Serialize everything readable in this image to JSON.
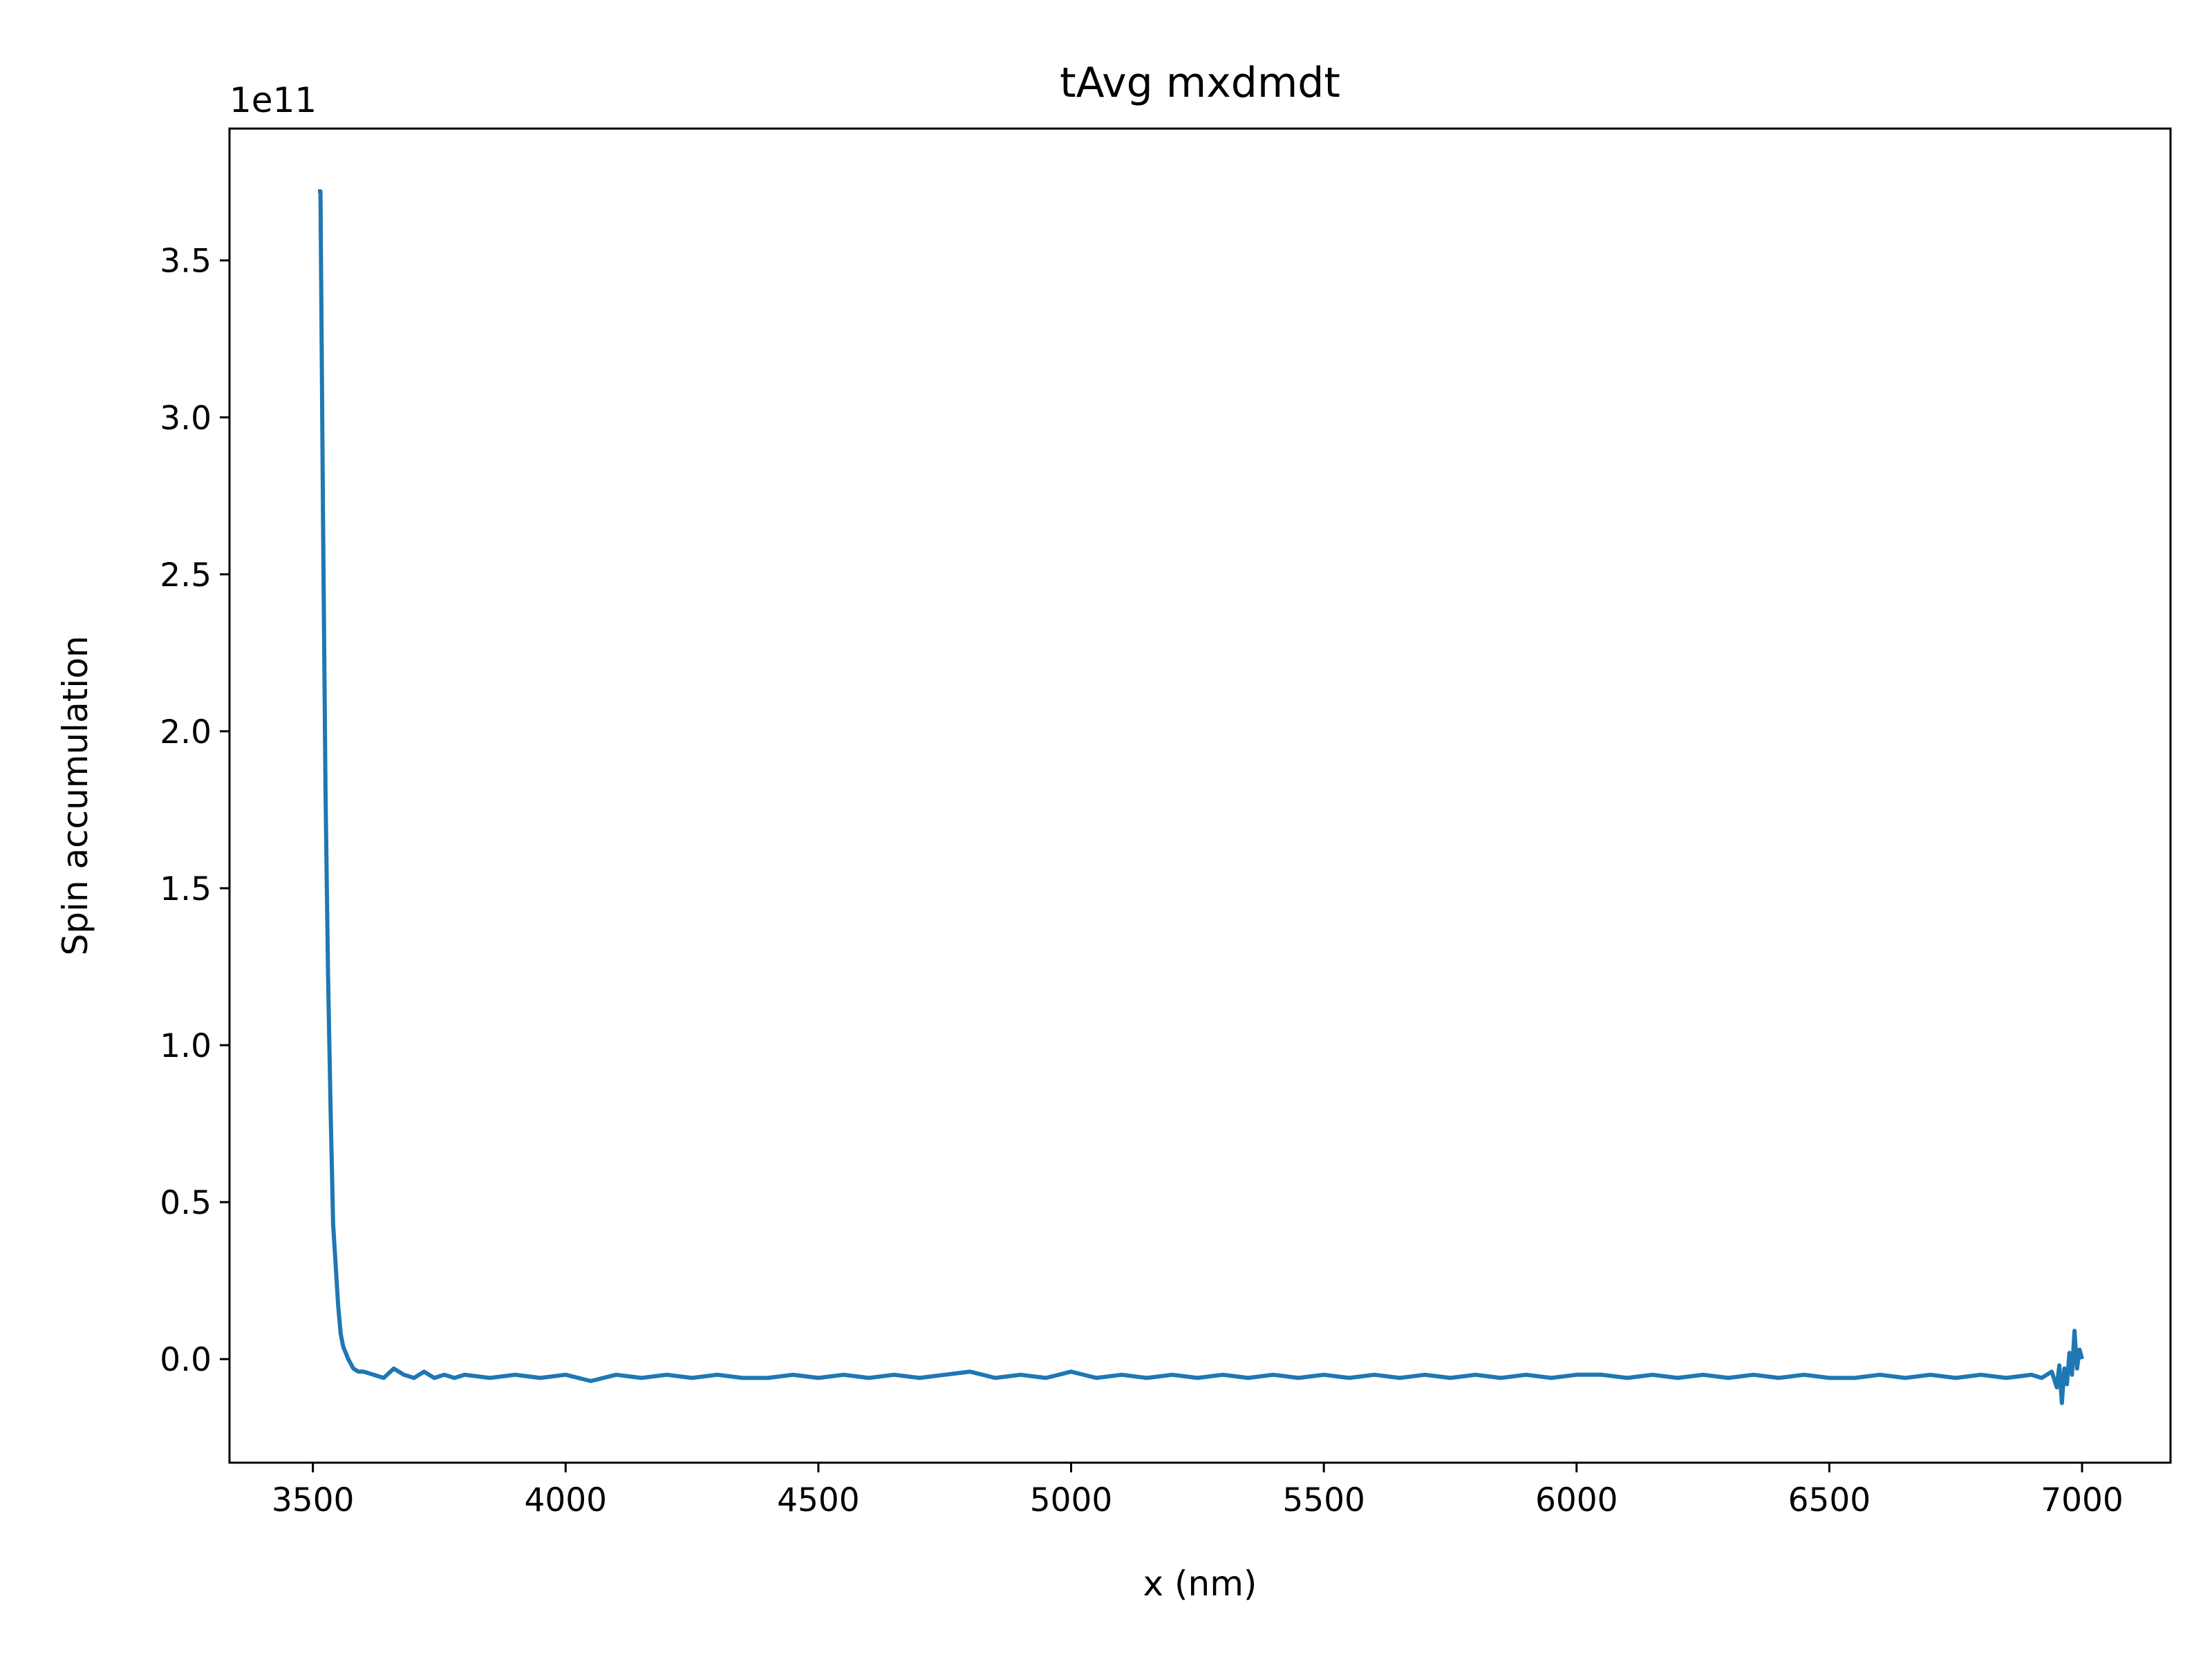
{
  "chart_data": {
    "type": "line",
    "title": "tAvg mxdmdt",
    "xlabel": "x (nm)",
    "ylabel": "Spin accumulation",
    "y_offset_label": "1e11",
    "xlim": [
      3335,
      7175
    ],
    "ylim": [
      -0.33,
      3.92
    ],
    "xticks": [
      3500,
      4000,
      4500,
      5000,
      5500,
      6000,
      6500,
      7000
    ],
    "xtick_labels": [
      "3500",
      "4000",
      "4500",
      "5000",
      "5500",
      "6000",
      "6500",
      "7000"
    ],
    "yticks": [
      0.0,
      0.5,
      1.0,
      1.5,
      2.0,
      2.5,
      3.0,
      3.5
    ],
    "ytick_labels": [
      "0.0",
      "0.5",
      "1.0",
      "1.5",
      "2.0",
      "2.5",
      "3.0",
      "3.5"
    ],
    "grid": false,
    "series": [
      {
        "color": "#1f77b4",
        "x": [
          3510,
          3515,
          3520,
          3525,
          3530,
          3535,
          3540,
          3545,
          3550,
          3555,
          3560,
          3570,
          3580,
          3590,
          3600,
          3620,
          3640,
          3660,
          3680,
          3700,
          3720,
          3740,
          3760,
          3780,
          3800,
          3850,
          3900,
          3950,
          4000,
          4050,
          4100,
          4150,
          4200,
          4250,
          4300,
          4350,
          4400,
          4450,
          4500,
          4550,
          4600,
          4650,
          4700,
          4750,
          4800,
          4850,
          4900,
          4950,
          5000,
          5050,
          5100,
          5150,
          5200,
          5250,
          5300,
          5350,
          5400,
          5450,
          5500,
          5550,
          5600,
          5650,
          5700,
          5750,
          5800,
          5850,
          5900,
          5950,
          6000,
          6050,
          6100,
          6150,
          6200,
          6250,
          6300,
          6350,
          6400,
          6450,
          6500,
          6550,
          6600,
          6650,
          6700,
          6750,
          6800,
          6850,
          6900,
          6920,
          6940,
          6950,
          6955,
          6960,
          6965,
          6970,
          6975,
          6980,
          6985,
          6990,
          6995,
          7000
        ],
        "values": [
          3.72,
          3.72,
          2.68,
          1.81,
          1.22,
          0.79,
          0.43,
          0.3,
          0.17,
          0.08,
          0.04,
          0.0,
          -0.03,
          -0.04,
          -0.04,
          -0.05,
          -0.06,
          -0.03,
          -0.05,
          -0.06,
          -0.04,
          -0.06,
          -0.05,
          -0.06,
          -0.05,
          -0.06,
          -0.05,
          -0.06,
          -0.05,
          -0.07,
          -0.05,
          -0.06,
          -0.05,
          -0.06,
          -0.05,
          -0.06,
          -0.06,
          -0.05,
          -0.06,
          -0.05,
          -0.06,
          -0.05,
          -0.06,
          -0.05,
          -0.04,
          -0.06,
          -0.05,
          -0.06,
          -0.04,
          -0.06,
          -0.05,
          -0.06,
          -0.05,
          -0.06,
          -0.05,
          -0.06,
          -0.05,
          -0.06,
          -0.05,
          -0.06,
          -0.05,
          -0.06,
          -0.05,
          -0.06,
          -0.05,
          -0.06,
          -0.05,
          -0.06,
          -0.05,
          -0.05,
          -0.06,
          -0.05,
          -0.06,
          -0.05,
          -0.06,
          -0.05,
          -0.06,
          -0.05,
          -0.06,
          -0.06,
          -0.05,
          -0.06,
          -0.05,
          -0.06,
          -0.05,
          -0.06,
          -0.05,
          -0.06,
          -0.04,
          -0.09,
          -0.02,
          -0.14,
          -0.03,
          -0.08,
          0.02,
          -0.05,
          0.09,
          -0.03,
          0.03,
          0.0
        ]
      }
    ]
  }
}
